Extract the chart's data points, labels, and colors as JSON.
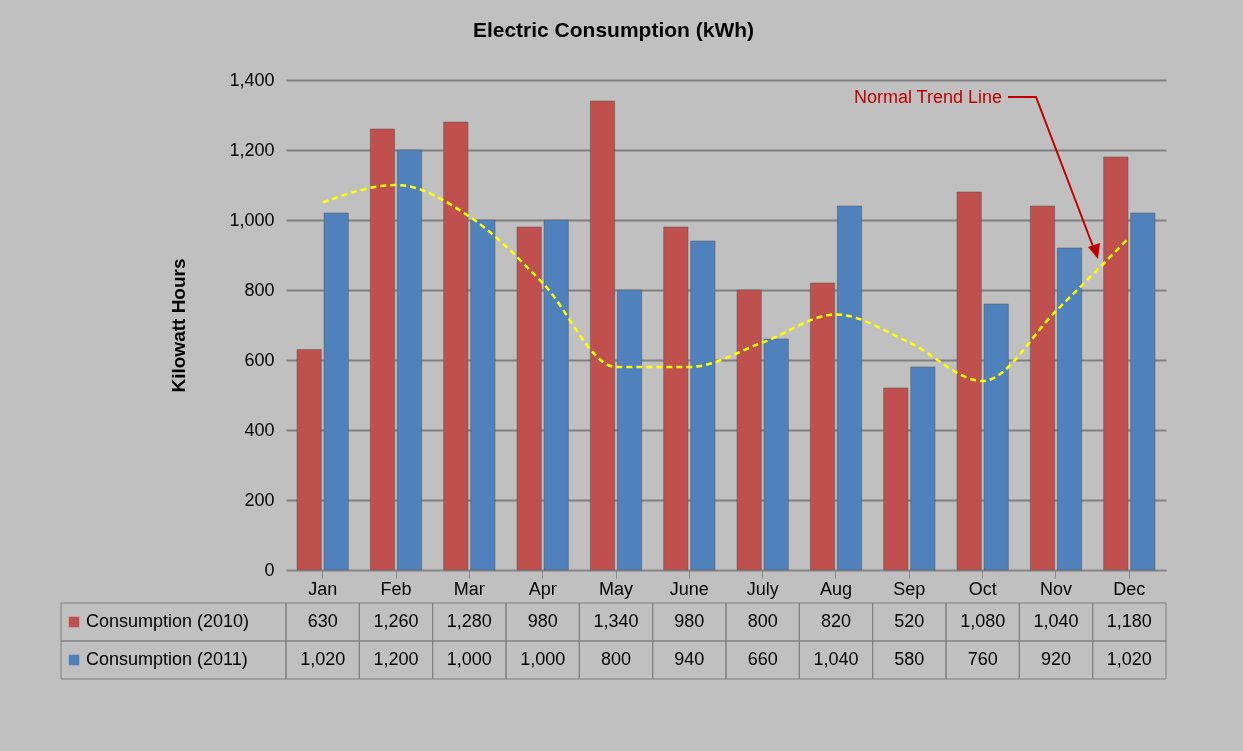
{
  "chart_data": {
    "type": "bar",
    "title": "Electric Consumption (kWh)",
    "ylabel": "Kilowatt Hours",
    "categories": [
      "Jan",
      "Feb",
      "Mar",
      "Apr",
      "May",
      "June",
      "July",
      "Aug",
      "Sep",
      "Oct",
      "Nov",
      "Dec"
    ],
    "series": [
      {
        "name": "Consumption (2010)",
        "color": "#c0504d",
        "values": [
          630,
          1260,
          1280,
          980,
          1340,
          980,
          800,
          820,
          520,
          1080,
          1040,
          1180
        ],
        "value_labels": [
          "630",
          "1,260",
          "1,280",
          "980",
          "1,340",
          "980",
          "800",
          "820",
          "520",
          "1,080",
          "1,040",
          "1,180"
        ]
      },
      {
        "name": "Consumption (2011)",
        "color": "#4f81bd",
        "values": [
          1020,
          1200,
          1000,
          1000,
          800,
          940,
          660,
          1040,
          580,
          760,
          920,
          1020
        ],
        "value_labels": [
          "1,020",
          "1,200",
          "1,000",
          "1,000",
          "800",
          "940",
          "660",
          "1,040",
          "580",
          "760",
          "920",
          "1,020"
        ]
      },
      {
        "type": "line",
        "color": "#ffff00",
        "line_style": "dashed",
        "values": [
          1050,
          1100,
          1010,
          820,
          580,
          580,
          650,
          730,
          650,
          540,
          740,
          950
        ]
      }
    ],
    "ylim": [
      0,
      1400
    ],
    "yticks": [
      0,
      200,
      400,
      600,
      800,
      {
        "value": 1000,
        "label": "1,000"
      },
      {
        "value": 1200,
        "label": "1,200"
      },
      {
        "value": 1400,
        "label": "1,400"
      }
    ],
    "grid": "y",
    "legend": "bottom",
    "annotations": [
      "Normal Trend Line"
    ]
  }
}
